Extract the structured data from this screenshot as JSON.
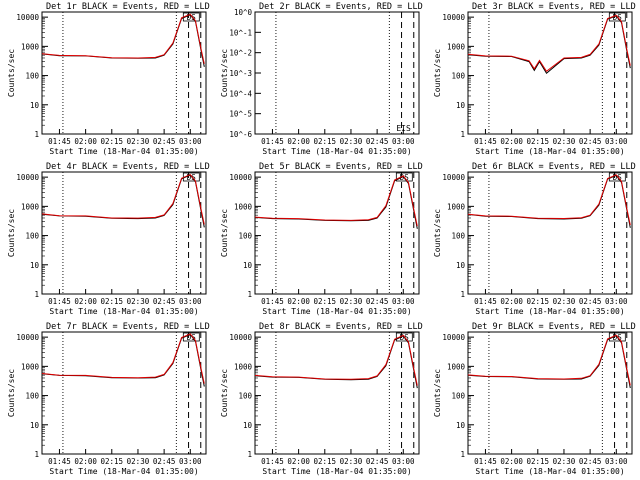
{
  "page": {
    "x_tick_labels": [
      "01:45",
      "02:00",
      "02:15",
      "02:30",
      "02:45",
      "03:00"
    ],
    "y_tick_labels": [
      "1",
      "10",
      "100",
      "1000",
      "10000"
    ],
    "y_tick_labels_det2": [
      "10^-6",
      "10^-5",
      "10^-4",
      "10^-3",
      "10^-2",
      "10^-1",
      "10^0"
    ],
    "ylabel": "Counts/sec",
    "xlabel": "Start Time (18-Mar-04 01:35:00)",
    "flag_labels": [
      "DS",
      "EIS"
    ],
    "colors": {
      "events": "#000000",
      "lld": "#e00000"
    }
  },
  "chart_data": [
    {
      "type": "line",
      "title": "Det 1r BLACK = Events, RED = LLD",
      "ylabel": "Counts/sec",
      "xlabel": "Start Time (18-Mar-04 01:35:00)",
      "yscale": "log",
      "ylim": [
        1,
        15000
      ],
      "x_ticks": [
        "01:45",
        "02:00",
        "02:15",
        "02:30",
        "02:45",
        "03:00"
      ],
      "flag": "DS",
      "x": [
        "01:35",
        "01:45",
        "02:00",
        "02:15",
        "02:30",
        "02:40",
        "02:45",
        "02:50",
        "02:55",
        "03:00",
        "03:03",
        "03:06",
        "03:08"
      ],
      "series": [
        {
          "name": "Events",
          "values": [
            550,
            480,
            470,
            400,
            390,
            400,
            500,
            1200,
            9000,
            12000,
            7000,
            800,
            200
          ]
        },
        {
          "name": "LLD",
          "values": [
            560,
            490,
            480,
            410,
            400,
            420,
            520,
            1300,
            9500,
            12500,
            7500,
            900,
            250
          ]
        }
      ]
    },
    {
      "type": "line",
      "title": "Det 2r BLACK = Events, RED = LLD",
      "ylabel": "Counts/sec",
      "xlabel": "Start Time (18-Mar-04 01:35:00)",
      "yscale": "log",
      "ylim": [
        1e-06,
        1
      ],
      "x_ticks": [
        "01:45",
        "02:00",
        "02:15",
        "02:30",
        "02:45",
        "03:00"
      ],
      "flag": "EIS",
      "x": [],
      "series": []
    },
    {
      "type": "line",
      "title": "Det 3r BLACK = Events, RED = LLD",
      "ylabel": "Counts/sec",
      "xlabel": "Start Time (18-Mar-04 01:35:00)",
      "yscale": "log",
      "ylim": [
        1,
        15000
      ],
      "x_ticks": [
        "01:45",
        "02:00",
        "02:15",
        "02:30",
        "02:45",
        "03:00"
      ],
      "flag": "DS",
      "x": [
        "01:35",
        "01:45",
        "02:00",
        "02:10",
        "02:13",
        "02:16",
        "02:20",
        "02:30",
        "02:40",
        "02:45",
        "02:50",
        "02:55",
        "03:00",
        "03:03",
        "03:06",
        "03:08"
      ],
      "series": [
        {
          "name": "Events",
          "values": [
            520,
            460,
            450,
            300,
            150,
            300,
            120,
            380,
            400,
            500,
            1100,
            8500,
            11000,
            6500,
            700,
            180
          ]
        },
        {
          "name": "LLD",
          "values": [
            540,
            470,
            460,
            320,
            170,
            330,
            140,
            400,
            420,
            530,
            1200,
            9000,
            11500,
            7000,
            800,
            220
          ]
        }
      ]
    },
    {
      "type": "line",
      "title": "Det 4r BLACK = Events, RED = LLD",
      "ylabel": "Counts/sec",
      "xlabel": "Start Time (18-Mar-04 01:35:00)",
      "yscale": "log",
      "ylim": [
        1,
        15000
      ],
      "x_ticks": [
        "01:45",
        "02:00",
        "02:15",
        "02:30",
        "02:45",
        "03:00"
      ],
      "flag": "DS",
      "x": [
        "01:35",
        "01:45",
        "02:00",
        "02:15",
        "02:30",
        "02:40",
        "02:45",
        "02:50",
        "02:55",
        "03:00",
        "03:03",
        "03:06",
        "03:08"
      ],
      "series": [
        {
          "name": "Events",
          "values": [
            540,
            470,
            460,
            390,
            380,
            400,
            490,
            1150,
            8800,
            11800,
            6800,
            780,
            190
          ]
        },
        {
          "name": "LLD",
          "values": [
            550,
            480,
            470,
            400,
            395,
            420,
            510,
            1250,
            9200,
            12200,
            7300,
            880,
            240
          ]
        }
      ]
    },
    {
      "type": "line",
      "title": "Det 5r BLACK = Events, RED = LLD",
      "ylabel": "Counts/sec",
      "xlabel": "Start Time (18-Mar-04 01:35:00)",
      "yscale": "log",
      "ylim": [
        1,
        15000
      ],
      "x_ticks": [
        "01:45",
        "02:00",
        "02:15",
        "02:30",
        "02:45",
        "03:00"
      ],
      "flag": "DS",
      "x": [
        "01:35",
        "01:45",
        "02:00",
        "02:15",
        "02:30",
        "02:40",
        "02:45",
        "02:50",
        "02:55",
        "03:00",
        "03:03",
        "03:06",
        "03:08"
      ],
      "series": [
        {
          "name": "Events",
          "values": [
            420,
            380,
            370,
            330,
            320,
            330,
            400,
            950,
            7500,
            10500,
            6000,
            700,
            170
          ]
        },
        {
          "name": "LLD",
          "values": [
            430,
            390,
            380,
            340,
            330,
            350,
            420,
            1050,
            8000,
            11000,
            6500,
            800,
            210
          ]
        }
      ]
    },
    {
      "type": "line",
      "title": "Det 6r BLACK = Events, RED = LLD",
      "ylabel": "Counts/sec",
      "xlabel": "Start Time (18-Mar-04 01:35:00)",
      "yscale": "log",
      "ylim": [
        1,
        15000
      ],
      "x_ticks": [
        "01:45",
        "02:00",
        "02:15",
        "02:30",
        "02:45",
        "03:00"
      ],
      "flag": "DS",
      "x": [
        "01:35",
        "01:45",
        "02:00",
        "02:15",
        "02:30",
        "02:40",
        "02:45",
        "02:50",
        "02:55",
        "03:00",
        "03:03",
        "03:06",
        "03:08"
      ],
      "series": [
        {
          "name": "Events",
          "values": [
            530,
            460,
            450,
            380,
            370,
            390,
            480,
            1100,
            8600,
            11500,
            6600,
            760,
            185
          ]
        },
        {
          "name": "LLD",
          "values": [
            540,
            470,
            460,
            390,
            385,
            410,
            500,
            1200,
            9000,
            12000,
            7100,
            860,
            230
          ]
        }
      ]
    },
    {
      "type": "line",
      "title": "Det 7r BLACK = Events, RED = LLD",
      "ylabel": "Counts/sec",
      "xlabel": "Start Time (18-Mar-04 01:35:00)",
      "yscale": "log",
      "ylim": [
        1,
        15000
      ],
      "x_ticks": [
        "01:45",
        "02:00",
        "02:15",
        "02:30",
        "02:45",
        "03:00"
      ],
      "flag": "DS",
      "x": [
        "01:35",
        "01:45",
        "02:00",
        "02:15",
        "02:30",
        "02:40",
        "02:45",
        "02:50",
        "02:55",
        "03:00",
        "03:03",
        "03:06",
        "03:08"
      ],
      "series": [
        {
          "name": "Events",
          "values": [
            560,
            490,
            480,
            410,
            400,
            410,
            510,
            1250,
            9200,
            12300,
            7100,
            820,
            205
          ]
        },
        {
          "name": "LLD",
          "values": [
            570,
            500,
            490,
            420,
            410,
            430,
            530,
            1350,
            9700,
            12800,
            7600,
            920,
            255
          ]
        }
      ]
    },
    {
      "type": "line",
      "title": "Det 8r BLACK = Events, RED = LLD",
      "ylabel": "Counts/sec",
      "xlabel": "Start Time (18-Mar-04 01:35:00)",
      "yscale": "log",
      "ylim": [
        1,
        15000
      ],
      "x_ticks": [
        "01:45",
        "02:00",
        "02:15",
        "02:30",
        "02:45",
        "03:00"
      ],
      "flag": "DS",
      "x": [
        "01:35",
        "01:45",
        "02:00",
        "02:15",
        "02:30",
        "02:40",
        "02:45",
        "02:50",
        "02:55",
        "03:00",
        "03:03",
        "03:06",
        "03:08"
      ],
      "series": [
        {
          "name": "Events",
          "values": [
            480,
            430,
            420,
            360,
            350,
            360,
            450,
            1050,
            8000,
            11000,
            6300,
            730,
            180
          ]
        },
        {
          "name": "LLD",
          "values": [
            490,
            440,
            430,
            370,
            360,
            380,
            470,
            1150,
            8500,
            11500,
            6800,
            830,
            220
          ]
        }
      ]
    },
    {
      "type": "line",
      "title": "Det 9r BLACK = Events, RED = LLD",
      "ylabel": "Counts/sec",
      "xlabel": "Start Time (18-Mar-04 01:35:00)",
      "yscale": "log",
      "ylim": [
        1,
        15000
      ],
      "x_ticks": [
        "01:45",
        "02:00",
        "02:15",
        "02:30",
        "02:45",
        "03:00"
      ],
      "flag": "DS",
      "x": [
        "01:35",
        "01:45",
        "02:00",
        "02:15",
        "02:30",
        "02:40",
        "02:45",
        "02:50",
        "02:55",
        "03:00",
        "03:03",
        "03:06",
        "03:08"
      ],
      "series": [
        {
          "name": "Events",
          "values": [
            500,
            450,
            440,
            370,
            360,
            370,
            460,
            1080,
            8200,
            11200,
            6400,
            740,
            182
          ]
        },
        {
          "name": "LLD",
          "values": [
            510,
            460,
            450,
            380,
            370,
            390,
            480,
            1180,
            8700,
            11700,
            6900,
            840,
            225
          ]
        }
      ]
    }
  ]
}
